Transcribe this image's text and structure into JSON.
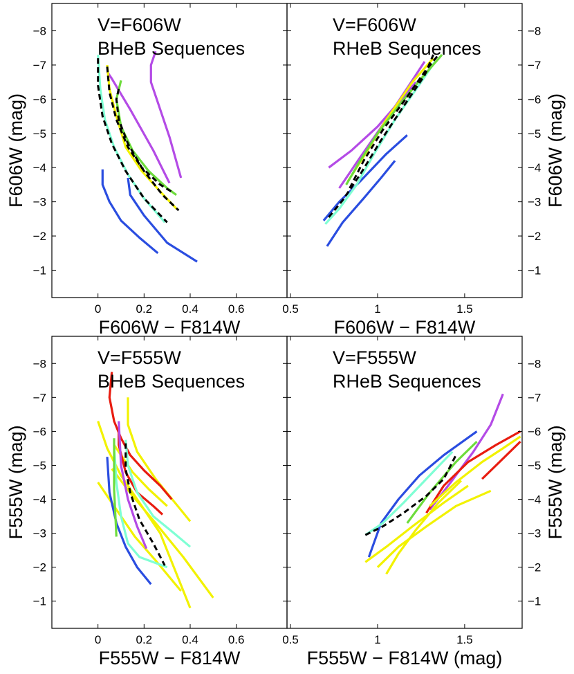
{
  "figure": {
    "description_text": "",
    "panels_count": 4
  },
  "chart_data": [
    {
      "type": "line",
      "panel": "top-left",
      "xlabel": "F606W − F814W",
      "ylabel": "F606W (mag)",
      "ylabel_side": "left",
      "xlim": [
        -0.2,
        0.82
      ],
      "ylim": [
        -0.2,
        -8.8
      ],
      "xticks": [
        0,
        0.2,
        0.4,
        0.6
      ],
      "xtick_labels": [
        "0",
        "0.2",
        "0.4",
        "0.6"
      ],
      "yticks": [
        -1,
        -2,
        -3,
        -4,
        -5,
        -6,
        -7,
        -8
      ],
      "ytick_labels": [
        "−1",
        "−2",
        "−3",
        "−4",
        "−5",
        "−6",
        "−7",
        "−8"
      ],
      "annotations": [
        "V=F606W",
        "BHeB Sequences"
      ],
      "series": [
        {
          "name": "blue-1",
          "color": "#2a4de0",
          "dash": false,
          "x": [
            0.02,
            0.02,
            0.05,
            0.1,
            0.18,
            0.26
          ],
          "y": [
            -3.95,
            -3.5,
            -3.0,
            -2.45,
            -1.95,
            -1.5
          ]
        },
        {
          "name": "blue-2",
          "color": "#2a4de0",
          "dash": false,
          "x": [
            0.13,
            0.14,
            0.2,
            0.3,
            0.43
          ],
          "y": [
            -3.7,
            -3.2,
            -2.6,
            -1.8,
            -1.25
          ]
        },
        {
          "name": "magenta-1",
          "color": "#b44be6",
          "dash": false,
          "x": [
            0.25,
            0.23,
            0.23,
            0.26,
            0.31,
            0.36
          ],
          "y": [
            -7.4,
            -7.0,
            -6.5,
            -5.9,
            -4.9,
            -3.7
          ]
        },
        {
          "name": "magenta-2",
          "color": "#b44be6",
          "dash": false,
          "x": [
            0.04,
            0.06,
            0.14,
            0.24,
            0.31
          ],
          "y": [
            -6.8,
            -6.6,
            -5.7,
            -4.5,
            -3.55
          ]
        },
        {
          "name": "cyan-1",
          "color": "#7fffd4",
          "dash": false,
          "x": [
            0.0,
            0.01,
            0.03,
            0.07,
            0.13,
            0.2,
            0.29
          ],
          "y": [
            -7.3,
            -6.3,
            -5.4,
            -4.6,
            -3.8,
            -3.1,
            -2.4
          ]
        },
        {
          "name": "yellow-1",
          "color": "#f2f200",
          "dash": false,
          "x": [
            0.04,
            0.05,
            0.08,
            0.12,
            0.19,
            0.27,
            0.34
          ],
          "y": [
            -7.0,
            -6.3,
            -5.5,
            -4.6,
            -3.9,
            -3.3,
            -2.8
          ]
        },
        {
          "name": "green-1",
          "color": "#6ddc3c",
          "dash": false,
          "x": [
            0.1,
            0.08,
            0.1,
            0.15,
            0.22,
            0.3,
            0.34
          ],
          "y": [
            -6.55,
            -6.0,
            -5.2,
            -4.5,
            -3.9,
            -3.4,
            -3.2
          ]
        },
        {
          "name": "black-dash-1",
          "color": "#000000",
          "dash": true,
          "x": [
            0.0,
            0.0,
            0.02,
            0.06,
            0.12,
            0.2,
            0.3
          ],
          "y": [
            -7.2,
            -6.4,
            -5.5,
            -4.7,
            -3.9,
            -3.1,
            -2.4
          ]
        },
        {
          "name": "black-dash-2",
          "color": "#000000",
          "dash": true,
          "x": [
            0.04,
            0.05,
            0.08,
            0.13,
            0.2,
            0.28,
            0.35
          ],
          "y": [
            -6.95,
            -6.2,
            -5.4,
            -4.6,
            -3.9,
            -3.2,
            -2.75
          ]
        },
        {
          "name": "black-dash-3",
          "color": "#000000",
          "dash": true,
          "x": [
            0.09,
            0.08,
            0.09,
            0.13,
            0.19,
            0.27,
            0.33
          ],
          "y": [
            -6.3,
            -6.0,
            -5.4,
            -4.7,
            -4.0,
            -3.5,
            -3.25
          ]
        }
      ]
    },
    {
      "type": "line",
      "panel": "top-right",
      "xlabel": "F606W − F814W",
      "ylabel": "F606W (mag)",
      "ylabel_side": "right",
      "xlim": [
        0.48,
        1.83
      ],
      "ylim": [
        -0.2,
        -8.8
      ],
      "xticks": [
        0.5,
        1,
        1.5
      ],
      "xtick_labels": [
        "0.5",
        "1",
        "1.5"
      ],
      "yticks": [
        -1,
        -2,
        -3,
        -4,
        -5,
        -6,
        -7,
        -8
      ],
      "ytick_labels": [
        "−1",
        "−2",
        "−3",
        "−4",
        "−5",
        "−6",
        "−7",
        "−8"
      ],
      "annotations": [
        "V=F606W",
        "RHeB Sequences"
      ],
      "series": [
        {
          "name": "blue-1",
          "color": "#2a4de0",
          "dash": false,
          "x": [
            0.69,
            0.78,
            0.9,
            1.05,
            1.17
          ],
          "y": [
            -2.45,
            -3.0,
            -3.6,
            -4.4,
            -4.95
          ]
        },
        {
          "name": "blue-2",
          "color": "#2a4de0",
          "dash": false,
          "x": [
            0.71,
            0.8,
            0.92,
            1.02,
            1.1
          ],
          "y": [
            -1.7,
            -2.4,
            -3.1,
            -3.7,
            -4.2
          ]
        },
        {
          "name": "magenta-1",
          "color": "#b44be6",
          "dash": false,
          "x": [
            0.72,
            0.85,
            1.0,
            1.12,
            1.22
          ],
          "y": [
            -4.0,
            -4.5,
            -5.2,
            -5.9,
            -6.5
          ]
        },
        {
          "name": "magenta-2",
          "color": "#b44be6",
          "dash": false,
          "x": [
            0.78,
            0.9,
            1.05,
            1.18,
            1.27
          ],
          "y": [
            -3.4,
            -4.3,
            -5.4,
            -6.4,
            -7.1
          ]
        },
        {
          "name": "cyan-1",
          "color": "#7fffd4",
          "dash": false,
          "x": [
            0.7,
            0.78,
            0.88,
            0.98,
            1.1,
            1.25,
            1.33
          ],
          "y": [
            -2.35,
            -2.8,
            -3.5,
            -4.4,
            -5.4,
            -6.5,
            -7.1
          ]
        },
        {
          "name": "yellow-1",
          "color": "#f2f200",
          "dash": false,
          "x": [
            0.83,
            0.93,
            1.05,
            1.2,
            1.32
          ],
          "y": [
            -3.6,
            -4.4,
            -5.4,
            -6.5,
            -7.2
          ]
        },
        {
          "name": "green-1",
          "color": "#6ddc3c",
          "dash": false,
          "x": [
            0.82,
            0.9,
            1.0,
            1.12,
            1.25,
            1.37
          ],
          "y": [
            -3.5,
            -4.2,
            -5.0,
            -5.8,
            -6.6,
            -7.3
          ]
        },
        {
          "name": "black-dash-1",
          "color": "#000000",
          "dash": true,
          "x": [
            0.72,
            0.8,
            0.9,
            1.02,
            1.15,
            1.27,
            1.32
          ],
          "y": [
            -2.55,
            -3.05,
            -3.8,
            -4.8,
            -5.8,
            -6.7,
            -7.3
          ]
        },
        {
          "name": "black-dash-2",
          "color": "#000000",
          "dash": true,
          "x": [
            0.84,
            0.92,
            1.03,
            1.16,
            1.27,
            1.35
          ],
          "y": [
            -3.4,
            -4.2,
            -5.1,
            -6.0,
            -6.8,
            -7.3
          ]
        }
      ]
    },
    {
      "type": "line",
      "panel": "bottom-left",
      "xlabel": "F555W − F814W",
      "ylabel": "F555W (mag)",
      "ylabel_side": "left",
      "xlim": [
        -0.2,
        0.82
      ],
      "ylim": [
        -0.2,
        -8.8
      ],
      "xticks": [
        0,
        0.2,
        0.4,
        0.6
      ],
      "xtick_labels": [
        "0",
        "0.2",
        "0.4",
        "0.6"
      ],
      "yticks": [
        -1,
        -2,
        -3,
        -4,
        -5,
        -6,
        -7,
        -8
      ],
      "ytick_labels": [
        "−1",
        "−2",
        "−3",
        "−4",
        "−5",
        "−6",
        "−7",
        "−8"
      ],
      "annotations": [
        "V=F555W",
        "BHeB Sequences"
      ],
      "series": [
        {
          "name": "yellow-1",
          "color": "#f2f200",
          "dash": false,
          "x": [
            0.0,
            0.04,
            0.1,
            0.17,
            0.27,
            0.4
          ],
          "y": [
            -6.3,
            -5.5,
            -4.7,
            -4.0,
            -3.0,
            -0.8
          ]
        },
        {
          "name": "yellow-2",
          "color": "#f2f200",
          "dash": false,
          "x": [
            0.0,
            0.08,
            0.16,
            0.25,
            0.36
          ],
          "y": [
            -4.5,
            -3.7,
            -2.9,
            -2.2,
            -1.3
          ]
        },
        {
          "name": "yellow-3",
          "color": "#f2f200",
          "dash": false,
          "x": [
            0.06,
            0.15,
            0.25,
            0.37,
            0.5
          ],
          "y": [
            -4.9,
            -4.1,
            -3.3,
            -2.3,
            -1.1
          ]
        },
        {
          "name": "yellow-4",
          "color": "#f2f200",
          "dash": false,
          "x": [
            0.13,
            0.13,
            0.17,
            0.25,
            0.31,
            0.4
          ],
          "y": [
            -7.0,
            -6.2,
            -5.4,
            -4.6,
            -4.1,
            -3.35
          ]
        },
        {
          "name": "yellow-5",
          "color": "#f2f200",
          "dash": false,
          "x": [
            0.07,
            0.1,
            0.15,
            0.22,
            0.3
          ],
          "y": [
            -5.6,
            -5.3,
            -4.8,
            -4.3,
            -3.8
          ]
        },
        {
          "name": "red-1",
          "color": "#e81c10",
          "dash": false,
          "x": [
            0.06,
            0.05,
            0.07,
            0.1,
            0.14,
            0.2,
            0.27,
            0.32
          ],
          "y": [
            -7.75,
            -7.0,
            -6.3,
            -5.8,
            -5.3,
            -4.85,
            -4.4,
            -4.0
          ]
        },
        {
          "name": "red-2",
          "color": "#e81c10",
          "dash": false,
          "x": [
            0.09,
            0.09,
            0.12,
            0.17,
            0.24,
            0.28
          ],
          "y": [
            -6.0,
            -5.6,
            -4.8,
            -4.2,
            -3.8,
            -3.55
          ]
        },
        {
          "name": "blue-1",
          "color": "#2a4de0",
          "dash": false,
          "x": [
            0.04,
            0.05,
            0.08,
            0.12,
            0.17,
            0.23
          ],
          "y": [
            -5.25,
            -4.2,
            -3.3,
            -2.6,
            -2.0,
            -1.5
          ]
        },
        {
          "name": "magenta-1",
          "color": "#b44be6",
          "dash": false,
          "x": [
            0.09,
            0.1,
            0.13,
            0.17,
            0.21
          ],
          "y": [
            -6.3,
            -5.0,
            -4.0,
            -3.2,
            -2.55
          ]
        },
        {
          "name": "cyan-1",
          "color": "#7fffd4",
          "dash": false,
          "x": [
            0.07,
            0.08,
            0.1,
            0.13,
            0.18,
            0.3
          ],
          "y": [
            -5.6,
            -4.5,
            -3.5,
            -2.7,
            -2.3,
            -2.0
          ]
        },
        {
          "name": "cyan-2",
          "color": "#7fffd4",
          "dash": false,
          "x": [
            0.12,
            0.13,
            0.17,
            0.24,
            0.33,
            0.4
          ],
          "y": [
            -5.75,
            -5.0,
            -4.2,
            -3.5,
            -3.0,
            -2.6
          ]
        },
        {
          "name": "green-1",
          "color": "#6ddc3c",
          "dash": false,
          "x": [
            0.07,
            0.07,
            0.08
          ],
          "y": [
            -5.8,
            -4.3,
            -2.9
          ]
        },
        {
          "name": "black-dash-1",
          "color": "#000000",
          "dash": true,
          "x": [
            0.12,
            0.12,
            0.14,
            0.18,
            0.24,
            0.29
          ],
          "y": [
            -5.65,
            -4.9,
            -4.2,
            -3.4,
            -2.7,
            -2.05
          ]
        }
      ]
    },
    {
      "type": "line",
      "panel": "bottom-right",
      "xlabel": "F555W − F814W (mag)",
      "ylabel": "F555W (mag)",
      "ylabel_side": "right",
      "xlim": [
        0.48,
        1.83
      ],
      "ylim": [
        -0.2,
        -8.8
      ],
      "xticks": [
        0.5,
        1,
        1.5
      ],
      "xtick_labels": [
        "0.5",
        "1",
        "1.5"
      ],
      "yticks": [
        -1,
        -2,
        -3,
        -4,
        -5,
        -6,
        -7,
        -8
      ],
      "ytick_labels": [
        "−1",
        "−2",
        "−3",
        "−4",
        "−5",
        "−6",
        "−7",
        "−8"
      ],
      "annotations": [
        "V=F555W",
        "RHeB Sequences"
      ],
      "series": [
        {
          "name": "blue-1",
          "color": "#2a4de0",
          "dash": false,
          "x": [
            0.95,
            1.02,
            1.12,
            1.24,
            1.38,
            1.57
          ],
          "y": [
            -2.3,
            -3.3,
            -4.0,
            -4.7,
            -5.3,
            -6.0
          ]
        },
        {
          "name": "cyan-1",
          "color": "#7fffd4",
          "dash": false,
          "x": [
            0.93,
            1.03,
            1.15,
            1.28,
            1.43
          ],
          "y": [
            -2.95,
            -3.3,
            -3.9,
            -4.6,
            -5.4
          ]
        },
        {
          "name": "magenta-1",
          "color": "#b44be6",
          "dash": false,
          "x": [
            1.3,
            1.42,
            1.55,
            1.65,
            1.72
          ],
          "y": [
            -3.7,
            -4.5,
            -5.4,
            -6.2,
            -7.1
          ]
        },
        {
          "name": "green-1",
          "color": "#6ddc3c",
          "dash": false,
          "x": [
            1.17,
            1.3,
            1.45,
            1.57
          ],
          "y": [
            -3.3,
            -4.2,
            -5.1,
            -5.7
          ]
        },
        {
          "name": "red-1",
          "color": "#e81c10",
          "dash": false,
          "x": [
            1.28,
            1.38,
            1.52,
            1.68,
            1.82
          ],
          "y": [
            -3.6,
            -4.4,
            -5.1,
            -5.6,
            -6.0
          ]
        },
        {
          "name": "red-2",
          "color": "#e81c10",
          "dash": false,
          "x": [
            1.6,
            1.7,
            1.82
          ],
          "y": [
            -4.6,
            -5.1,
            -5.7
          ]
        },
        {
          "name": "yellow-1",
          "color": "#f2f200",
          "dash": false,
          "x": [
            0.93,
            1.05,
            1.2,
            1.38,
            1.52
          ],
          "y": [
            -2.15,
            -2.6,
            -3.2,
            -3.9,
            -4.4
          ]
        },
        {
          "name": "yellow-2",
          "color": "#f2f200",
          "dash": false,
          "x": [
            1.0,
            1.12,
            1.28,
            1.45,
            1.65
          ],
          "y": [
            -2.0,
            -2.6,
            -3.2,
            -3.8,
            -4.25
          ]
        },
        {
          "name": "yellow-3",
          "color": "#f2f200",
          "dash": false,
          "x": [
            1.05,
            1.12,
            1.22,
            1.35,
            1.48
          ],
          "y": [
            -1.8,
            -2.4,
            -3.1,
            -3.9,
            -4.55
          ]
        },
        {
          "name": "yellow-4",
          "color": "#f2f200",
          "dash": false,
          "x": [
            1.3,
            1.45,
            1.6,
            1.72,
            1.82
          ],
          "y": [
            -3.8,
            -4.5,
            -5.1,
            -5.5,
            -5.85
          ]
        },
        {
          "name": "black-dash-1",
          "color": "#000000",
          "dash": true,
          "x": [
            0.93,
            1.03,
            1.15,
            1.28,
            1.38,
            1.45
          ],
          "y": [
            -2.95,
            -3.2,
            -3.6,
            -4.1,
            -4.6,
            -5.3
          ]
        }
      ]
    }
  ]
}
